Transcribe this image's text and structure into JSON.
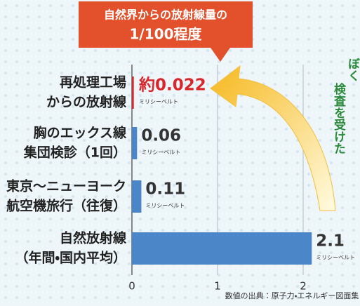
{
  "chart_data": {
    "type": "bar",
    "orientation": "horizontal",
    "title_lines": [
      "自然界からの放射線量の",
      "1/100程度"
    ],
    "categories": [
      [
        "再処理工場",
        "からの放射線"
      ],
      [
        "胸のエックス線",
        "集団検診（1回）"
      ],
      [
        "東京～ニューヨーク",
        "航空機旅行（往復）"
      ],
      [
        "自然放射線",
        "（年間・国内平均）"
      ]
    ],
    "values": [
      0.022,
      0.06,
      0.11,
      2.1
    ],
    "value_labels": [
      "約0.022",
      "0.06",
      "0.11",
      "2.1"
    ],
    "colors": [
      "#d9262b",
      "#4a86c8",
      "#4a86c8",
      "#4a86c8"
    ],
    "value_label_colors": [
      "#d9262b",
      "#333333",
      "#333333",
      "#333333"
    ],
    "unit": "ミリシーベルト",
    "xlim": [
      0,
      2.5
    ],
    "xticks": [
      0,
      1,
      2
    ],
    "grid": true,
    "source": "数値の出典：原子力・エネルギー図面集",
    "side_note": [
      "ぼく",
      "検査を受けた"
    ]
  }
}
